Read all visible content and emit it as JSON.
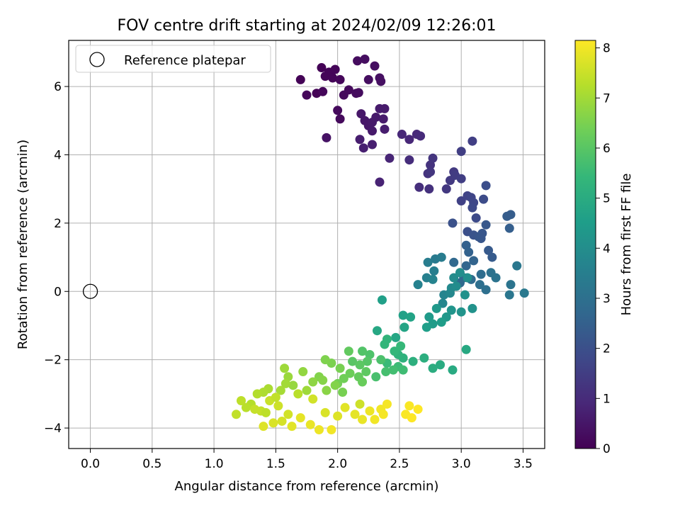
{
  "chart_data": {
    "type": "scatter",
    "title": "FOV centre drift starting at 2024/02/09 12:26:01",
    "xlabel": "Angular distance from reference (arcmin)",
    "ylabel": "Rotation from reference (arcmin)",
    "xlim": [
      -0.175,
      3.675
    ],
    "ylim": [
      -4.6,
      7.35
    ],
    "xticks": [
      0.0,
      0.5,
      1.0,
      1.5,
      2.0,
      2.5,
      3.0,
      3.5
    ],
    "xtick_labels": [
      "0.0",
      "0.5",
      "1.0",
      "1.5",
      "2.0",
      "2.5",
      "3.0",
      "3.5"
    ],
    "yticks": [
      -4,
      -2,
      0,
      2,
      4,
      6
    ],
    "ytick_labels": [
      "−4",
      "−2",
      "0",
      "2",
      "4",
      "6"
    ],
    "grid": true,
    "legend": {
      "position": "top-left",
      "entries": [
        "Reference platepar"
      ]
    },
    "reference_point": {
      "x": 0.0,
      "y": 0.0,
      "marker": "hollow-circle"
    },
    "colorbar": {
      "label": "Hours from first FF file",
      "min": 0,
      "max": 8.15,
      "ticks": [
        0,
        1,
        2,
        3,
        4,
        5,
        6,
        7,
        8
      ],
      "tick_labels": [
        "0",
        "1",
        "2",
        "3",
        "4",
        "5",
        "6",
        "7",
        "8"
      ],
      "colormap": "viridis",
      "colors": [
        "#440154",
        "#482878",
        "#3e4989",
        "#31688e",
        "#26828e",
        "#1f9e89",
        "#35b779",
        "#6ece58",
        "#b5de2b",
        "#fde725"
      ]
    },
    "points": [
      [
        1.7,
        6.2,
        0.05
      ],
      [
        1.83,
        5.8,
        0.05
      ],
      [
        1.87,
        6.55,
        0.05
      ],
      [
        1.9,
        6.3,
        0.1
      ],
      [
        1.93,
        6.42,
        0.1
      ],
      [
        1.96,
        6.25,
        0.1
      ],
      [
        1.98,
        6.5,
        0.1
      ],
      [
        2.02,
        6.2,
        0.15
      ],
      [
        1.75,
        5.75,
        0.15
      ],
      [
        1.88,
        5.85,
        0.15
      ],
      [
        2.0,
        5.3,
        0.2
      ],
      [
        2.02,
        5.05,
        0.2
      ],
      [
        2.05,
        5.75,
        0.2
      ],
      [
        2.09,
        5.9,
        0.2
      ],
      [
        2.15,
        5.8,
        0.25
      ],
      [
        2.17,
        5.82,
        0.25
      ],
      [
        2.16,
        6.75,
        0.25
      ],
      [
        2.22,
        6.8,
        0.3
      ],
      [
        2.25,
        6.2,
        0.3
      ],
      [
        2.3,
        6.6,
        0.3
      ],
      [
        2.34,
        6.25,
        0.35
      ],
      [
        2.35,
        6.15,
        0.35
      ],
      [
        1.91,
        4.5,
        0.4
      ],
      [
        2.19,
        5.2,
        0.5
      ],
      [
        2.22,
        5.0,
        0.5
      ],
      [
        2.25,
        4.85,
        0.5
      ],
      [
        2.28,
        4.95,
        0.55
      ],
      [
        2.31,
        5.1,
        0.55
      ],
      [
        2.28,
        4.7,
        0.55
      ],
      [
        2.34,
        5.35,
        0.6
      ],
      [
        2.38,
        5.35,
        0.6
      ],
      [
        2.37,
        5.05,
        0.6
      ],
      [
        2.38,
        4.75,
        0.65
      ],
      [
        2.18,
        4.45,
        0.65
      ],
      [
        2.21,
        4.2,
        0.7
      ],
      [
        2.28,
        4.3,
        0.7
      ],
      [
        2.34,
        3.2,
        0.8
      ],
      [
        2.42,
        3.9,
        0.85
      ],
      [
        2.52,
        4.6,
        0.9
      ],
      [
        2.58,
        4.45,
        0.9
      ],
      [
        2.64,
        4.6,
        0.95
      ],
      [
        2.67,
        4.55,
        1.0
      ],
      [
        2.58,
        3.85,
        1.05
      ],
      [
        2.66,
        3.05,
        1.1
      ],
      [
        2.74,
        3.0,
        1.15
      ],
      [
        2.73,
        3.45,
        1.2
      ],
      [
        2.75,
        3.7,
        1.2
      ],
      [
        2.77,
        3.9,
        1.25
      ],
      [
        2.75,
        3.5,
        1.3
      ],
      [
        2.88,
        3.0,
        1.35
      ],
      [
        2.91,
        3.25,
        1.4
      ],
      [
        2.94,
        3.5,
        1.4
      ],
      [
        2.95,
        3.4,
        1.45
      ],
      [
        3.0,
        3.3,
        1.5
      ],
      [
        3.0,
        4.1,
        1.5
      ],
      [
        3.09,
        4.4,
        1.55
      ],
      [
        3.0,
        2.65,
        1.6
      ],
      [
        3.05,
        2.8,
        1.65
      ],
      [
        3.08,
        2.75,
        1.7
      ],
      [
        3.1,
        2.6,
        1.75
      ],
      [
        3.09,
        2.45,
        1.8
      ],
      [
        3.12,
        2.15,
        1.85
      ],
      [
        3.18,
        2.7,
        1.9
      ],
      [
        3.2,
        3.1,
        1.95
      ],
      [
        3.05,
        1.75,
        2.0
      ],
      [
        2.93,
        2.0,
        2.05
      ],
      [
        3.1,
        1.65,
        2.1
      ],
      [
        3.14,
        1.6,
        2.15
      ],
      [
        3.17,
        1.7,
        2.2
      ],
      [
        3.16,
        1.55,
        2.2
      ],
      [
        3.2,
        1.95,
        2.25
      ],
      [
        3.22,
        1.2,
        2.3
      ],
      [
        3.25,
        1.0,
        2.35
      ],
      [
        3.37,
        2.2,
        2.4
      ],
      [
        3.4,
        2.25,
        2.4
      ],
      [
        3.39,
        1.85,
        2.45
      ],
      [
        3.04,
        1.35,
        2.5
      ],
      [
        3.06,
        1.15,
        2.55
      ],
      [
        3.1,
        0.9,
        2.6
      ],
      [
        3.04,
        0.75,
        2.65
      ],
      [
        3.02,
        0.4,
        2.7
      ],
      [
        2.94,
        0.85,
        2.75
      ],
      [
        2.99,
        0.25,
        2.8
      ],
      [
        3.08,
        0.35,
        2.85
      ],
      [
        3.16,
        0.5,
        2.9
      ],
      [
        3.15,
        0.2,
        2.95
      ],
      [
        3.2,
        0.05,
        3.0
      ],
      [
        3.24,
        0.55,
        3.05
      ],
      [
        3.28,
        0.4,
        3.1
      ],
      [
        3.4,
        0.2,
        3.15
      ],
      [
        3.39,
        -0.1,
        3.2
      ],
      [
        3.45,
        0.75,
        3.25
      ],
      [
        3.51,
        -0.05,
        3.3
      ],
      [
        2.79,
        0.95,
        3.35
      ],
      [
        2.84,
        1.0,
        3.4
      ],
      [
        2.73,
        0.85,
        3.45
      ],
      [
        2.78,
        0.6,
        3.5
      ],
      [
        2.72,
        0.4,
        3.55
      ],
      [
        2.65,
        0.2,
        3.6
      ],
      [
        2.77,
        0.35,
        3.65
      ],
      [
        2.86,
        -0.1,
        3.7
      ],
      [
        2.85,
        -0.35,
        3.75
      ],
      [
        2.91,
        -0.05,
        3.8
      ],
      [
        2.92,
        0.1,
        3.85
      ],
      [
        2.94,
        0.4,
        3.9
      ],
      [
        2.96,
        0.15,
        3.95
      ],
      [
        2.99,
        0.55,
        4.0
      ],
      [
        3.05,
        0.4,
        4.05
      ],
      [
        3.03,
        -0.1,
        4.1
      ],
      [
        3.09,
        -0.5,
        4.15
      ],
      [
        3.0,
        -0.6,
        4.2
      ],
      [
        2.92,
        -0.55,
        4.25
      ],
      [
        2.88,
        -0.75,
        4.3
      ],
      [
        2.8,
        -0.5,
        4.35
      ],
      [
        2.74,
        -0.75,
        4.4
      ],
      [
        2.77,
        -0.95,
        4.45
      ],
      [
        2.84,
        -0.9,
        4.5
      ],
      [
        2.72,
        -1.05,
        4.55
      ],
      [
        2.36,
        -0.25,
        4.6
      ],
      [
        2.53,
        -0.7,
        4.65
      ],
      [
        2.59,
        -0.75,
        4.7
      ],
      [
        2.54,
        -1.05,
        4.75
      ],
      [
        2.47,
        -1.35,
        4.8
      ],
      [
        2.32,
        -1.15,
        4.85
      ],
      [
        3.04,
        -1.7,
        4.9
      ],
      [
        2.93,
        -2.3,
        4.95
      ],
      [
        2.83,
        -2.15,
        5.0
      ],
      [
        2.77,
        -2.25,
        5.05
      ],
      [
        2.7,
        -1.95,
        5.1
      ],
      [
        2.61,
        -2.05,
        5.15
      ],
      [
        2.53,
        -1.95,
        5.2
      ],
      [
        2.49,
        -1.85,
        5.25
      ],
      [
        2.4,
        -1.4,
        5.3
      ],
      [
        2.38,
        -1.55,
        5.35
      ],
      [
        2.46,
        -1.75,
        5.4
      ],
      [
        2.51,
        -1.6,
        5.45
      ],
      [
        2.4,
        -2.1,
        5.5
      ],
      [
        2.49,
        -2.2,
        5.55
      ],
      [
        2.53,
        -2.3,
        5.6
      ],
      [
        2.45,
        -2.3,
        5.65
      ],
      [
        2.39,
        -2.35,
        5.7
      ],
      [
        2.31,
        -2.5,
        5.75
      ],
      [
        2.35,
        -2.0,
        5.8
      ],
      [
        2.26,
        -1.85,
        5.85
      ],
      [
        2.2,
        -1.75,
        5.9
      ],
      [
        2.24,
        -2.05,
        5.95
      ],
      [
        2.12,
        -2.05,
        6.0
      ],
      [
        2.18,
        -2.15,
        6.05
      ],
      [
        2.23,
        -2.35,
        6.1
      ],
      [
        2.09,
        -1.75,
        6.15
      ],
      [
        2.17,
        -2.5,
        6.2
      ],
      [
        2.2,
        -2.65,
        6.25
      ],
      [
        2.1,
        -2.4,
        6.3
      ],
      [
        2.05,
        -2.55,
        6.35
      ],
      [
        2.0,
        -2.7,
        6.4
      ],
      [
        2.04,
        -2.95,
        6.45
      ],
      [
        1.95,
        -2.1,
        6.5
      ],
      [
        1.9,
        -2.0,
        6.55
      ],
      [
        1.85,
        -2.5,
        6.6
      ],
      [
        1.88,
        -2.6,
        6.65
      ],
      [
        1.91,
        -2.9,
        6.7
      ],
      [
        1.8,
        -2.65,
        6.75
      ],
      [
        1.72,
        -2.35,
        6.8
      ],
      [
        1.64,
        -2.75,
        6.85
      ],
      [
        1.6,
        -2.5,
        6.9
      ],
      [
        1.57,
        -2.25,
        6.95
      ],
      [
        1.58,
        -2.7,
        7.0
      ],
      [
        1.54,
        -2.9,
        7.05
      ],
      [
        1.44,
        -2.85,
        7.1
      ],
      [
        1.4,
        -2.95,
        7.15
      ],
      [
        1.35,
        -3.0,
        7.2
      ],
      [
        1.3,
        -3.3,
        7.25
      ],
      [
        1.26,
        -3.4,
        7.3
      ],
      [
        1.22,
        -3.2,
        7.35
      ],
      [
        1.18,
        -3.6,
        7.4
      ],
      [
        1.38,
        -3.5,
        7.45
      ],
      [
        1.45,
        -3.2,
        7.5
      ],
      [
        1.52,
        -3.35,
        7.55
      ],
      [
        1.6,
        -3.6,
        7.6
      ],
      [
        1.55,
        -3.8,
        7.65
      ],
      [
        1.48,
        -3.85,
        7.7
      ],
      [
        1.4,
        -3.95,
        7.75
      ],
      [
        1.63,
        -3.95,
        7.8
      ],
      [
        1.7,
        -3.7,
        7.85
      ],
      [
        1.78,
        -3.9,
        7.9
      ],
      [
        1.85,
        -4.05,
        7.95
      ],
      [
        1.95,
        -4.05,
        8.0
      ],
      [
        1.8,
        -3.15,
        7.6
      ],
      [
        1.9,
        -3.55,
        7.7
      ],
      [
        2.0,
        -3.65,
        7.75
      ],
      [
        2.06,
        -3.4,
        7.8
      ],
      [
        2.14,
        -3.6,
        7.85
      ],
      [
        2.2,
        -3.75,
        7.9
      ],
      [
        2.26,
        -3.5,
        7.95
      ],
      [
        2.3,
        -3.75,
        8.0
      ],
      [
        2.35,
        -3.45,
        8.0
      ],
      [
        2.4,
        -3.3,
        8.05
      ],
      [
        2.37,
        -3.6,
        8.05
      ],
      [
        2.55,
        -3.6,
        8.1
      ],
      [
        2.58,
        -3.35,
        8.1
      ],
      [
        2.6,
        -3.7,
        8.15
      ],
      [
        2.65,
        -3.45,
        8.15
      ],
      [
        2.18,
        -3.3,
        7.55
      ],
      [
        1.68,
        -3.0,
        7.3
      ],
      [
        1.42,
        -3.55,
        7.35
      ],
      [
        1.5,
        -3.1,
        7.4
      ],
      [
        1.33,
        -3.45,
        7.45
      ],
      [
        1.98,
        -2.75,
        6.6
      ],
      [
        2.02,
        -2.25,
        6.45
      ],
      [
        1.75,
        -2.9,
        6.95
      ]
    ]
  }
}
